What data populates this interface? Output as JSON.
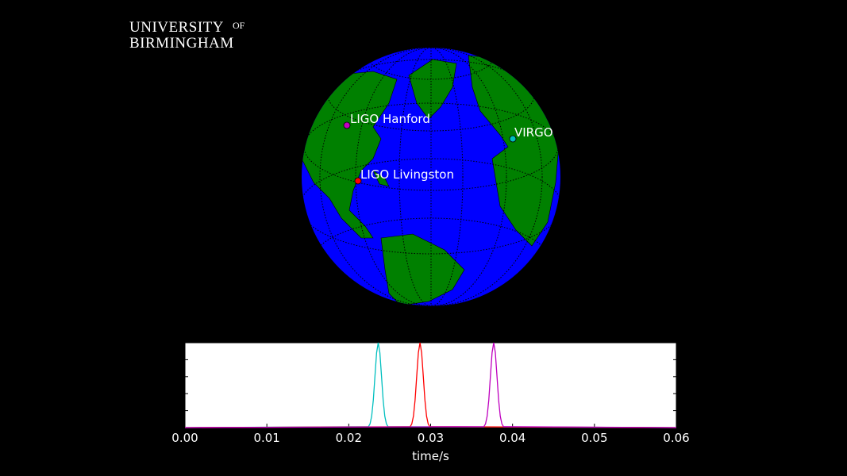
{
  "logo": {
    "line1": "UNIVERSITY",
    "of": "OF",
    "line2": "BIRMINGHAM"
  },
  "globe": {
    "detectors": [
      {
        "label": "LIGO Hanford",
        "color": "#c000c0"
      },
      {
        "label": "VIRGO",
        "color": "#00c0c0"
      },
      {
        "label": "LIGO Livingston",
        "color": "#ff0000"
      }
    ]
  },
  "chart_data": {
    "type": "line",
    "xlabel": "time/s",
    "xlim": [
      0,
      0.06
    ],
    "xticks": [
      {
        "value": 0,
        "label": "0.00"
      },
      0.01,
      0.02,
      0.03,
      0.04,
      0.05,
      0.06
    ],
    "ylim": [
      0,
      1
    ],
    "yticks": [
      0,
      0.2,
      0.4,
      0.6,
      0.8,
      1
    ],
    "series": [
      {
        "color": "#00bfbf",
        "x": [
          0,
          0.0224,
          0.0226,
          0.0228,
          0.023,
          0.0232,
          0.0234,
          0.0236,
          0.0238,
          0.024,
          0.0242,
          0.0244,
          0.0246,
          0.0248,
          0.06
        ],
        "values": [
          0,
          0.011,
          0.044,
          0.135,
          0.325,
          0.607,
          0.882,
          1,
          0.882,
          0.607,
          0.325,
          0.135,
          0.044,
          0.011,
          0
        ]
      },
      {
        "color": "#ff0000",
        "x": [
          0,
          0.0275,
          0.0277,
          0.0279,
          0.0281,
          0.0283,
          0.0285,
          0.0287,
          0.0289,
          0.0291,
          0.0293,
          0.0295,
          0.0297,
          0.0299,
          0.06
        ],
        "values": [
          0,
          0.011,
          0.044,
          0.135,
          0.325,
          0.607,
          0.882,
          1,
          0.882,
          0.607,
          0.325,
          0.135,
          0.044,
          0.011,
          0
        ]
      },
      {
        "color": "#bf00bf",
        "x": [
          0,
          0.0365,
          0.0367,
          0.0369,
          0.0371,
          0.0373,
          0.0375,
          0.0377,
          0.0379,
          0.0381,
          0.0383,
          0.0385,
          0.0387,
          0.0389,
          0.06
        ],
        "values": [
          0,
          0.011,
          0.044,
          0.135,
          0.325,
          0.607,
          0.882,
          1,
          0.882,
          0.607,
          0.325,
          0.135,
          0.044,
          0.011,
          0
        ]
      }
    ]
  }
}
